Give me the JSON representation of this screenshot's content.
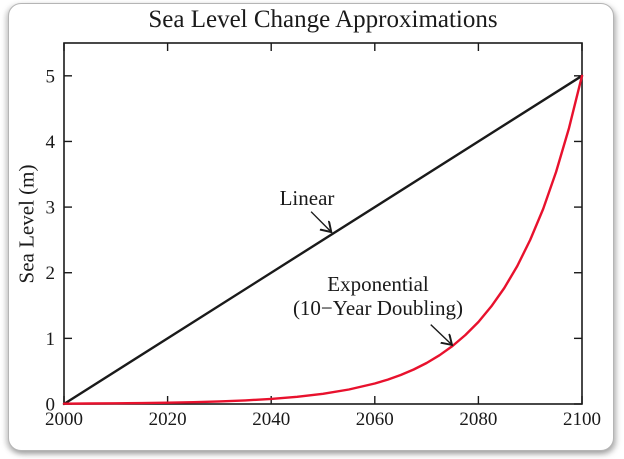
{
  "chart_data": {
    "type": "line",
    "title": "Sea Level Change Approximations",
    "xlabel": "",
    "ylabel": "Sea Level (m)",
    "xlim": [
      2000,
      2100
    ],
    "ylim": [
      0,
      5.5
    ],
    "x_ticks": [
      2000,
      2020,
      2040,
      2060,
      2080,
      2100
    ],
    "y_ticks": [
      0,
      1,
      2,
      3,
      4,
      5
    ],
    "grid": false,
    "legend": "none",
    "axis_color": "#1a1a1a",
    "series": [
      {
        "name": "Linear",
        "color": "#1a1a1a",
        "x": [
          2000,
          2100
        ],
        "y": [
          0,
          5
        ]
      },
      {
        "name": "Exponential (10-Year Doubling)",
        "color": "#e8112d",
        "x": [
          2000,
          2005,
          2010,
          2015,
          2020,
          2025,
          2030,
          2035,
          2040,
          2045,
          2050,
          2055,
          2060,
          2062.5,
          2065,
          2067.5,
          2070,
          2072.5,
          2075,
          2077.5,
          2080,
          2082.5,
          2085,
          2087.5,
          2090,
          2092.5,
          2095,
          2097.5,
          2100
        ],
        "y": [
          0.005,
          0.007,
          0.01,
          0.014,
          0.02,
          0.028,
          0.039,
          0.055,
          0.078,
          0.11,
          0.156,
          0.221,
          0.313,
          0.372,
          0.442,
          0.526,
          0.625,
          0.743,
          0.884,
          1.051,
          1.25,
          1.487,
          1.768,
          2.102,
          2.5,
          2.973,
          3.536,
          4.204,
          5.0
        ]
      }
    ],
    "annotations": [
      {
        "text": "Linear",
        "arrow": {
          "from": [
            2047.7,
            2.93
          ],
          "to": [
            2051.6,
            2.62
          ]
        }
      },
      {
        "lines": [
          "Exponential",
          "(10−Year Doubling)"
        ],
        "arrow": {
          "from": [
            2070.8,
            1.21
          ],
          "to": [
            2074.9,
            0.9
          ]
        }
      }
    ]
  }
}
